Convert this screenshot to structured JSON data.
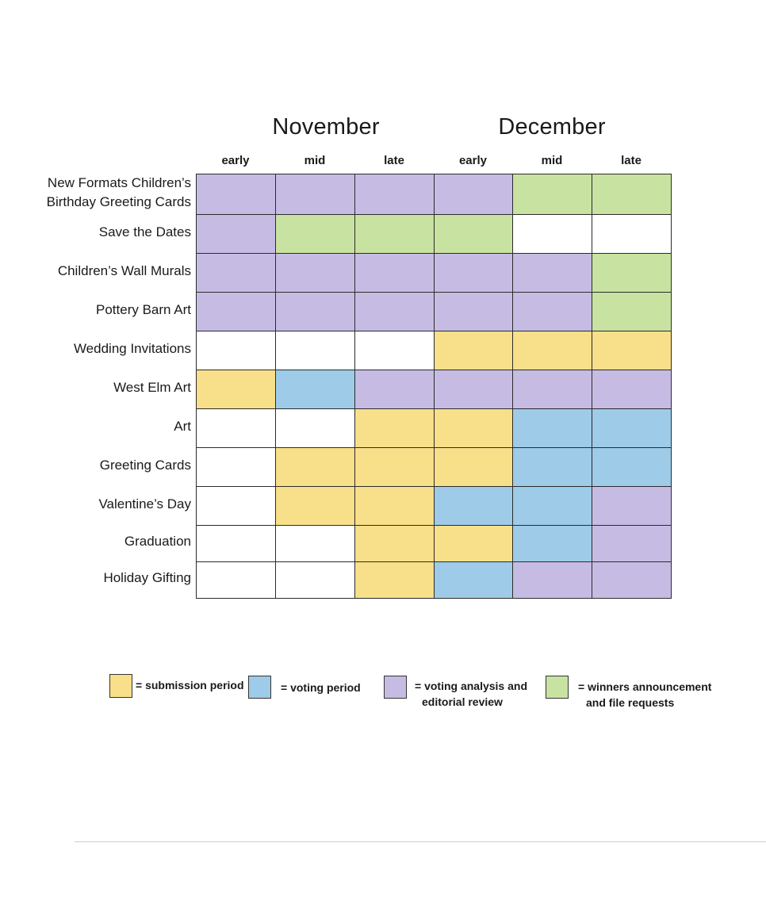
{
  "chart_data": {
    "type": "heatmap",
    "months": [
      {
        "name": "November",
        "periods": [
          "early",
          "mid",
          "late"
        ]
      },
      {
        "name": "December",
        "periods": [
          "early",
          "mid",
          "late"
        ]
      }
    ],
    "columns": [
      "early",
      "mid",
      "late",
      "early",
      "mid",
      "late"
    ],
    "rows": [
      {
        "label_lines": [
          "New Formats Children’s",
          "Birthday Greeting Cards"
        ],
        "cells": [
          "analysis",
          "analysis",
          "analysis",
          "analysis",
          "winners",
          "winners"
        ]
      },
      {
        "label_lines": [
          "Save the Dates"
        ],
        "cells": [
          "analysis",
          "winners",
          "winners",
          "winners",
          "none",
          "none"
        ]
      },
      {
        "label_lines": [
          "Children’s Wall Murals"
        ],
        "cells": [
          "analysis",
          "analysis",
          "analysis",
          "analysis",
          "analysis",
          "winners"
        ]
      },
      {
        "label_lines": [
          "Pottery Barn Art"
        ],
        "cells": [
          "analysis",
          "analysis",
          "analysis",
          "analysis",
          "analysis",
          "winners"
        ]
      },
      {
        "label_lines": [
          "Wedding Invitations"
        ],
        "cells": [
          "none",
          "none",
          "none",
          "submission",
          "submission",
          "submission"
        ]
      },
      {
        "label_lines": [
          "West Elm Art"
        ],
        "cells": [
          "submission",
          "voting",
          "analysis",
          "analysis",
          "analysis",
          "analysis"
        ]
      },
      {
        "label_lines": [
          "Art"
        ],
        "cells": [
          "none",
          "none",
          "submission",
          "submission",
          "voting",
          "voting"
        ]
      },
      {
        "label_lines": [
          "Greeting Cards"
        ],
        "cells": [
          "none",
          "submission",
          "submission",
          "submission",
          "voting",
          "voting"
        ]
      },
      {
        "label_lines": [
          "Valentine’s Day"
        ],
        "cells": [
          "none",
          "submission",
          "submission",
          "voting",
          "voting",
          "analysis"
        ]
      },
      {
        "label_lines": [
          "Graduation"
        ],
        "cells": [
          "none",
          "none",
          "submission",
          "submission",
          "voting",
          "analysis"
        ]
      },
      {
        "label_lines": [
          "Holiday Gifting"
        ],
        "cells": [
          "none",
          "none",
          "submission",
          "voting",
          "analysis",
          "analysis"
        ]
      }
    ],
    "legend": [
      {
        "key": "submission",
        "lines": [
          "= submission period"
        ]
      },
      {
        "key": "voting",
        "lines": [
          "= voting period"
        ]
      },
      {
        "key": "analysis",
        "lines": [
          "= voting analysis and",
          "editorial review"
        ]
      },
      {
        "key": "winners",
        "lines": [
          "= winners announcement",
          "and file requests"
        ]
      }
    ],
    "colors": {
      "submission": "#f8df89",
      "voting": "#9ecbe8",
      "analysis": "#c6bce3",
      "winners": "#c8e3a1",
      "none": "#ffffff"
    }
  }
}
